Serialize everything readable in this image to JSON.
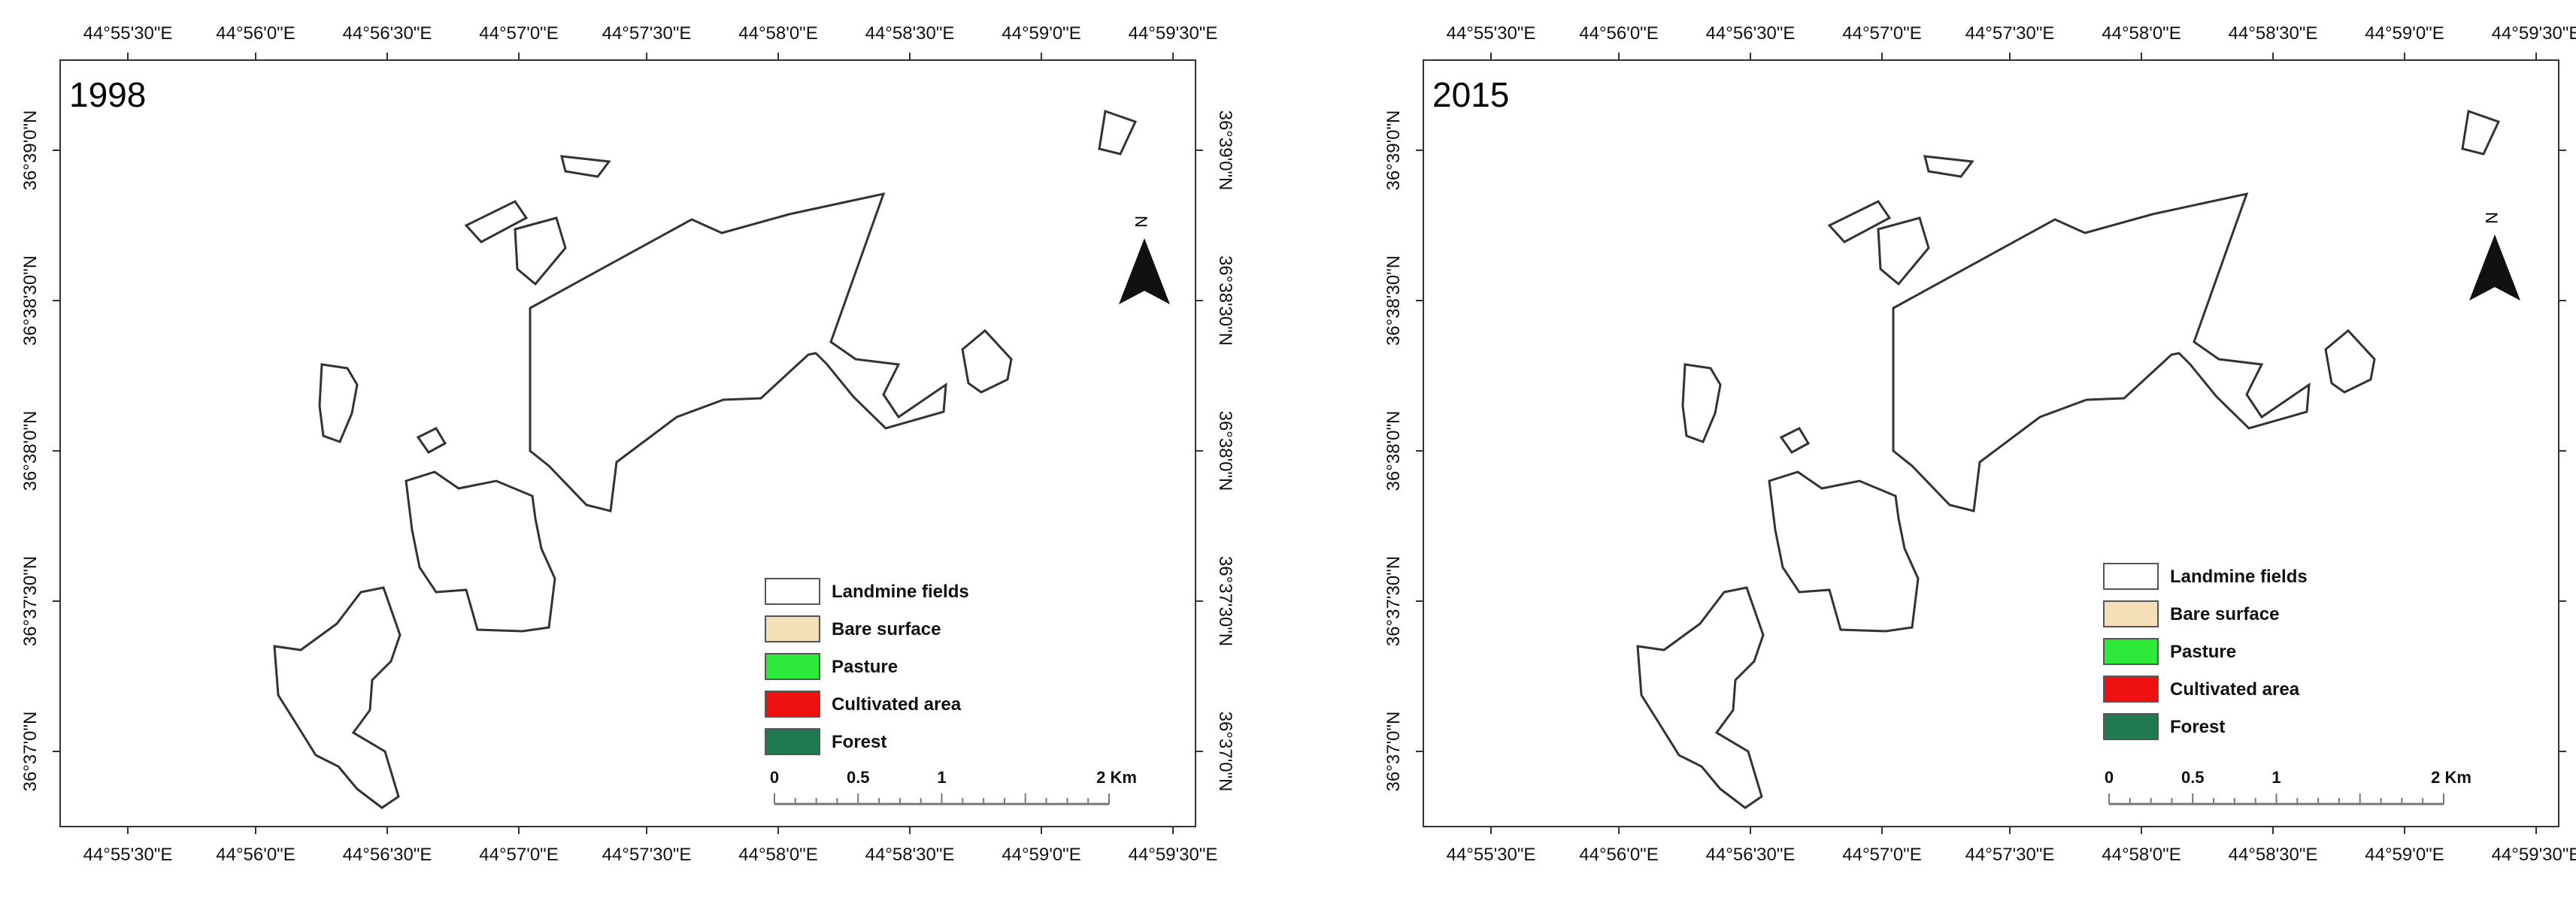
{
  "maps": [
    {
      "year": "1998",
      "top_ticks": [
        "44°55'30\"E",
        "44°56'0\"E",
        "44°56'30\"E",
        "44°57'0\"E",
        "44°57'30\"E",
        "44°58'0\"E",
        "44°58'30\"E",
        "44°59'0\"E",
        "44°59'30\"E"
      ],
      "bottom_ticks": [
        "44°55'30\"E",
        "44°56'0\"E",
        "44°56'30\"E",
        "44°57'0\"E",
        "44°57'30\"E",
        "44°58'0\"E",
        "44°58'30\"E",
        "44°59'0\"E",
        "44°59'30\"E"
      ],
      "left_ticks": [
        "36°39'0\"N",
        "36°38'30\"N",
        "36°38'0\"N",
        "36°37'30\"N",
        "36°37'0\"N"
      ],
      "right_ticks": [
        "36°39'0\"N",
        "36°38'30\"N",
        "36°38'0\"N",
        "36°37'30\"N",
        "36°37'0\"N"
      ]
    },
    {
      "year": "2015",
      "top_ticks": [
        "44°55'30\"E",
        "44°56'0\"E",
        "44°56'30\"E",
        "44°57'0\"E",
        "44°57'30\"E",
        "44°58'0\"E",
        "44°58'30\"E",
        "44°59'0\"E",
        "44°59'30\"E"
      ],
      "bottom_ticks": [
        "44°55'30\"E",
        "44°56'0\"E",
        "44°56'30\"E",
        "44°57'0\"E",
        "44°57'30\"E",
        "44°58'0\"E",
        "44°58'30\"E",
        "44°59'0\"E",
        "44°59'30\"E"
      ],
      "left_ticks": [
        "36°39'0\"N",
        "36°38'30\"N",
        "36°38'0\"N",
        "36°37'30\"N",
        "36°37'0\"N"
      ],
      "right_ticks": [
        "36°39'0\"N",
        "36°38'30\"N",
        "36°38'0\"N",
        "36°37'30\"N",
        "36°37'0\"N"
      ]
    }
  ],
  "legend": {
    "items": [
      {
        "label": "Landmine fields",
        "color": "#ffffff"
      },
      {
        "label": "Bare surface",
        "color": "#f5dfb8"
      },
      {
        "label": "Pasture",
        "color": "#2ee83a"
      },
      {
        "label": "Cultivated area",
        "color": "#ee1111"
      },
      {
        "label": "Forest",
        "color": "#1f7a52"
      }
    ]
  },
  "scale_bar": {
    "ticks": [
      "0",
      "0.5",
      "1",
      "2 Km"
    ]
  },
  "north_arrow": {
    "label": "N"
  },
  "colors": {
    "bare": "#f5dfb8",
    "pasture": "#2ee83a",
    "cultivated": "#ee1111",
    "forest": "#1f7a52"
  }
}
